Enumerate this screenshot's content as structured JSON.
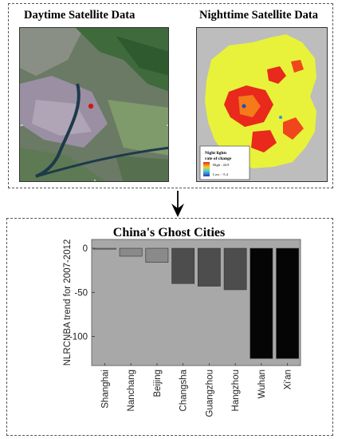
{
  "panels": {
    "day_title": "Daytime Satellite Data",
    "night_title": "Nighttime Satellite Data",
    "legend_title_line1": "Night lights",
    "legend_title_line2": "rate of change",
    "legend_high": "High : 44.9",
    "legend_low": "Low : -5.4"
  },
  "colors": {
    "bar_light": "#8a8a8a",
    "bar_mid": "#4d4d4d",
    "bar_dark": "#050505",
    "plot_bg": "#a8a8a8",
    "night_fill": "#e8f23a",
    "night_hot": "#e8291c"
  },
  "icons": [
    "down-arrow-icon"
  ],
  "chart_data": {
    "type": "bar",
    "title": "China's Ghost Cities",
    "ylabel": "NLRCNBA trend for 2007-2012",
    "xlabel": "",
    "categories": [
      "Shanghai",
      "Nanchang",
      "Beijing",
      "Changsha",
      "Guangzhou",
      "Hangzhou",
      "Wuhan",
      "Xi'an"
    ],
    "values": [
      -1,
      -9,
      -16,
      -40,
      -43,
      -47,
      -125,
      -125
    ],
    "bar_shade": [
      "light",
      "light",
      "light",
      "mid",
      "mid",
      "mid",
      "dark",
      "dark"
    ],
    "ylim": [
      -133,
      10
    ],
    "yticks": [
      0,
      -50,
      -100
    ],
    "grid": false
  }
}
